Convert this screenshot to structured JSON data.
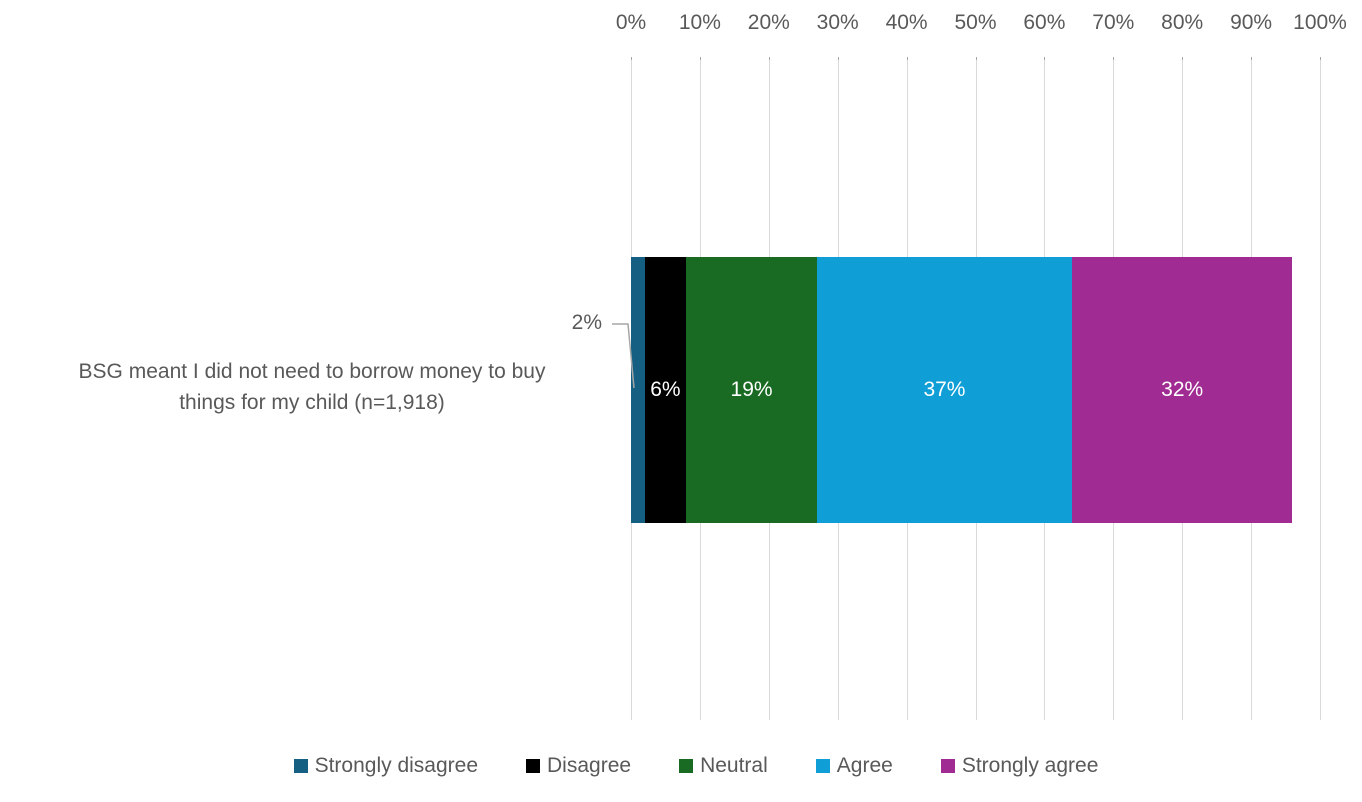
{
  "chart_data": {
    "type": "bar",
    "variant": "horizontal-stacked",
    "title": "",
    "category": {
      "label": "BSG meant I did not need to borrow money to buy things for my child (n=1,918)",
      "label_lines": [
        "BSG meant I did not need to borrow money to buy",
        "things for my child (n=1,918)"
      ]
    },
    "series": [
      {
        "name": "Strongly disagree",
        "value": 2,
        "label": "2%",
        "color": "#156082",
        "label_placement": "outside-callout"
      },
      {
        "name": "Disagree",
        "value": 6,
        "label": "6%",
        "color": "#000000",
        "label_placement": "inside"
      },
      {
        "name": "Neutral",
        "value": 19,
        "label": "19%",
        "color": "#196B24",
        "label_placement": "inside"
      },
      {
        "name": "Agree",
        "value": 37,
        "label": "37%",
        "color": "#0F9ED5",
        "label_placement": "inside"
      },
      {
        "name": "Strongly agree",
        "value": 32,
        "label": "32%",
        "color": "#A02B93",
        "label_placement": "inside"
      }
    ],
    "x_axis": {
      "position": "top",
      "min": 0,
      "max": 100,
      "tick_labels": [
        "0%",
        "10%",
        "20%",
        "30%",
        "40%",
        "50%",
        "60%",
        "70%",
        "80%",
        "90%",
        "100%"
      ]
    },
    "grid": "vertical",
    "legend": {
      "position": "bottom"
    },
    "colors": {
      "background": "#FFFFFF",
      "axis_text": "#595959",
      "category_text": "#595959",
      "data_label_inside": "#FFFFFF",
      "data_label_outside": "#595959",
      "gridline": "#D9D9D9",
      "tick_mark": "#A6A6A6",
      "leader_line": "#A6A6A6"
    }
  }
}
